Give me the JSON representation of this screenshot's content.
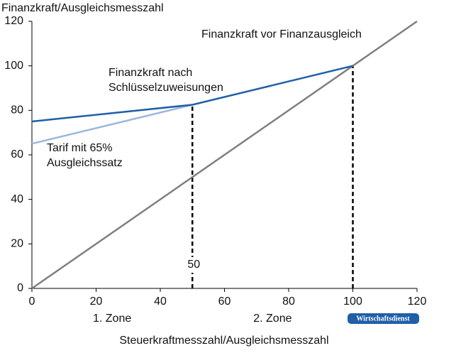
{
  "chart_data": {
    "type": "line",
    "y_axis_label": "Finanzkraft/Ausgleichsmesszahl",
    "x_axis_label": "Steuerkraftmesszahl/Ausgleichsmesszahl",
    "xlim": [
      0,
      120
    ],
    "xticks": [
      0,
      20,
      40,
      60,
      80,
      100,
      120
    ],
    "ylim": [
      0,
      120
    ],
    "yticks": [
      0,
      20,
      40,
      60,
      80,
      100,
      120
    ],
    "series": [
      {
        "name": "Finanzkraft vor Finanzausgleich",
        "color": "#7f7f7f",
        "x": [
          0,
          120
        ],
        "values": [
          0,
          120
        ]
      },
      {
        "name": "Finanzkraft nach Schlüsselzuweisungen",
        "color": "#1f5fa8",
        "x": [
          0,
          50,
          100
        ],
        "values": [
          75,
          82.5,
          100
        ]
      },
      {
        "name": "Tarif mit 65% Ausgleichssatz",
        "color": "#9bb8dc",
        "x": [
          0,
          50
        ],
        "values": [
          65,
          82.5
        ]
      }
    ],
    "reference_lines": [
      {
        "x": 50,
        "y": 82.5
      },
      {
        "x": 100,
        "y": 100
      }
    ],
    "zones": [
      {
        "label": "1. Zone",
        "from": 0,
        "to": 50
      },
      {
        "label": "2. Zone",
        "from": 50,
        "to": 100
      }
    ],
    "source": "Wirtschaftsdienst"
  }
}
